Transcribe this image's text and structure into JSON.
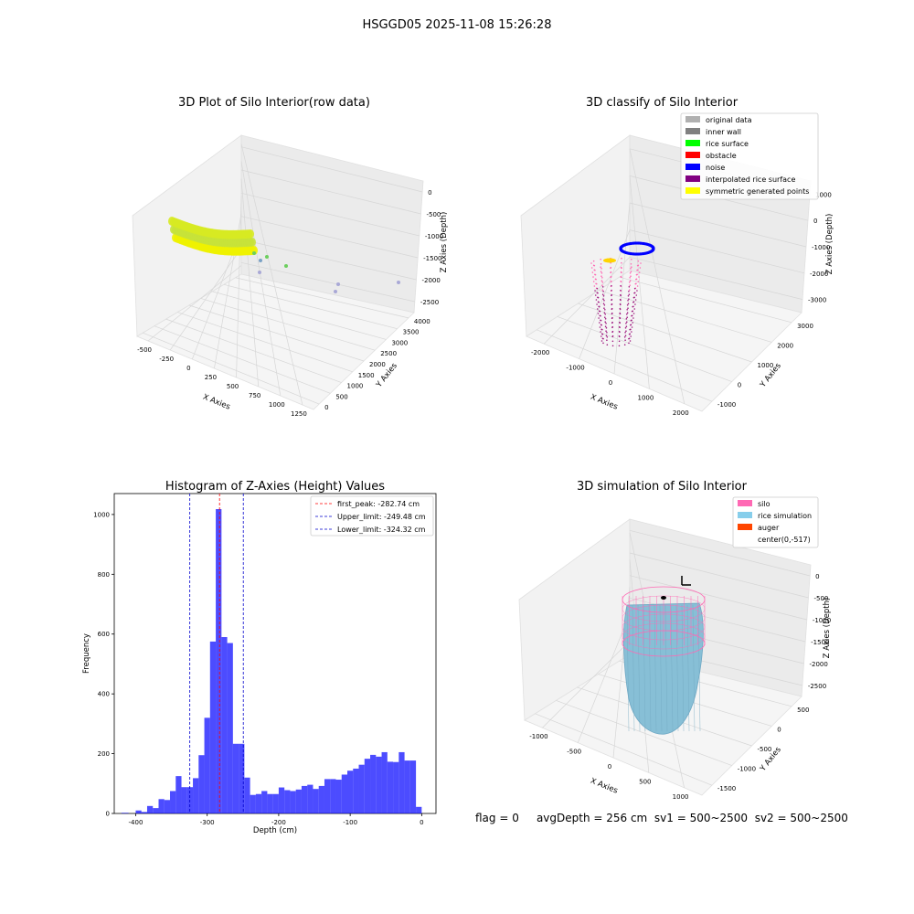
{
  "figure": {
    "suptitle": "HSGGD05 2025-11-08 15:26:28",
    "status_parts": [
      "flag = 0",
      "avgDepth = 256 cm",
      "sv1 = 500~2500",
      "sv2 = 500~2500"
    ]
  },
  "panels": {
    "raw": {
      "title": "3D Plot of Silo Interior(row data)",
      "xlabel": "X Axies",
      "ylabel": "Y Axies",
      "zlabel": "Z Axies (Depth)",
      "xticks": [
        "-500",
        "-250",
        "0",
        "250",
        "500",
        "750",
        "1000",
        "1250"
      ],
      "yticks": [
        "0",
        "500",
        "1000",
        "1500",
        "2000",
        "2500",
        "3000",
        "3500",
        "4000"
      ],
      "zticks": [
        "0",
        "-500",
        "-1000",
        "-1500",
        "-2000",
        "-2500"
      ]
    },
    "classify": {
      "title": "3D classify of Silo Interior",
      "xlabel": "X Axies",
      "ylabel": "Y Axies",
      "zlabel": "Z Axies (Depth)",
      "xticks": [
        "-2000",
        "-1000",
        "0",
        "1000",
        "2000"
      ],
      "yticks": [
        "-1000",
        "0",
        "1000",
        "2000",
        "3000"
      ],
      "zticks": [
        "1000",
        "0",
        "-1000",
        "-2000",
        "-3000"
      ],
      "legend": [
        {
          "label": "original data",
          "color": "#b0b0b0"
        },
        {
          "label": "inner wall",
          "color": "#808080"
        },
        {
          "label": "rice surface",
          "color": "#00ff00"
        },
        {
          "label": "obstacle",
          "color": "#ff0000"
        },
        {
          "label": "noise",
          "color": "#0000ff"
        },
        {
          "label": "interpolated rice surface",
          "color": "#800080"
        },
        {
          "label": "symmetric generated points",
          "color": "#ffff00"
        }
      ]
    },
    "simulation": {
      "title": "3D simulation of Silo Interior",
      "xlabel": "X Axies",
      "ylabel": "Y Axies",
      "zlabel": "Z Axies (Depth)",
      "xticks": [
        "-1000",
        "-500",
        "0",
        "500",
        "1000"
      ],
      "yticks": [
        "-1500",
        "-1000",
        "-500",
        "0",
        "500"
      ],
      "zticks": [
        "0",
        "-500",
        "-1000",
        "-1500",
        "-2000",
        "-2500"
      ],
      "legend": [
        {
          "label": "silo",
          "color": "#ff69b4"
        },
        {
          "label": "rice simulation",
          "color": "#87ceeb"
        },
        {
          "label": "auger",
          "color": "#ff4500"
        },
        {
          "label": "center(0,-517)",
          "color": "none"
        }
      ]
    }
  },
  "chart_data": {
    "type": "bar",
    "title": "Histogram of Z-Axies (Height) Values",
    "xlabel": "Depth (cm)",
    "ylabel": "Frequency",
    "xlim": [
      -430,
      20
    ],
    "ylim": [
      0,
      1070
    ],
    "xticks": [
      -400,
      -300,
      -200,
      -100,
      0
    ],
    "yticks": [
      0,
      200,
      400,
      600,
      800,
      1000
    ],
    "bar_color": "#0000ff",
    "bins": [
      {
        "x0": -420,
        "x1": -410,
        "value": 2
      },
      {
        "x0": -410,
        "x1": -400,
        "value": 0
      },
      {
        "x0": -400,
        "x1": -392,
        "value": 10
      },
      {
        "x0": -392,
        "x1": -384,
        "value": 5
      },
      {
        "x0": -384,
        "x1": -376,
        "value": 25
      },
      {
        "x0": -376,
        "x1": -368,
        "value": 18
      },
      {
        "x0": -368,
        "x1": -360,
        "value": 48
      },
      {
        "x0": -360,
        "x1": -352,
        "value": 45
      },
      {
        "x0": -352,
        "x1": -344,
        "value": 75
      },
      {
        "x0": -344,
        "x1": -336,
        "value": 125
      },
      {
        "x0": -336,
        "x1": -328,
        "value": 88
      },
      {
        "x0": -328,
        "x1": -320,
        "value": 88
      },
      {
        "x0": -320,
        "x1": -312,
        "value": 118
      },
      {
        "x0": -312,
        "x1": -304,
        "value": 195
      },
      {
        "x0": -304,
        "x1": -296,
        "value": 320
      },
      {
        "x0": -296,
        "x1": -288,
        "value": 575
      },
      {
        "x0": -288,
        "x1": -280,
        "value": 1018
      },
      {
        "x0": -280,
        "x1": -272,
        "value": 590
      },
      {
        "x0": -272,
        "x1": -264,
        "value": 570
      },
      {
        "x0": -264,
        "x1": -256,
        "value": 233
      },
      {
        "x0": -256,
        "x1": -248,
        "value": 233
      },
      {
        "x0": -248,
        "x1": -240,
        "value": 120
      },
      {
        "x0": -240,
        "x1": -232,
        "value": 62
      },
      {
        "x0": -232,
        "x1": -224,
        "value": 65
      },
      {
        "x0": -224,
        "x1": -216,
        "value": 75
      },
      {
        "x0": -216,
        "x1": -208,
        "value": 65
      },
      {
        "x0": -208,
        "x1": -200,
        "value": 65
      },
      {
        "x0": -200,
        "x1": -192,
        "value": 87
      },
      {
        "x0": -192,
        "x1": -184,
        "value": 78
      },
      {
        "x0": -184,
        "x1": -176,
        "value": 75
      },
      {
        "x0": -176,
        "x1": -168,
        "value": 80
      },
      {
        "x0": -168,
        "x1": -160,
        "value": 92
      },
      {
        "x0": -160,
        "x1": -152,
        "value": 96
      },
      {
        "x0": -152,
        "x1": -144,
        "value": 82
      },
      {
        "x0": -144,
        "x1": -136,
        "value": 92
      },
      {
        "x0": -136,
        "x1": -128,
        "value": 115
      },
      {
        "x0": -128,
        "x1": -120,
        "value": 115
      },
      {
        "x0": -120,
        "x1": -112,
        "value": 113
      },
      {
        "x0": -112,
        "x1": -104,
        "value": 130
      },
      {
        "x0": -104,
        "x1": -96,
        "value": 143
      },
      {
        "x0": -96,
        "x1": -88,
        "value": 150
      },
      {
        "x0": -88,
        "x1": -80,
        "value": 163
      },
      {
        "x0": -80,
        "x1": -72,
        "value": 183
      },
      {
        "x0": -72,
        "x1": -64,
        "value": 196
      },
      {
        "x0": -64,
        "x1": -56,
        "value": 190
      },
      {
        "x0": -56,
        "x1": -48,
        "value": 205
      },
      {
        "x0": -48,
        "x1": -40,
        "value": 173
      },
      {
        "x0": -40,
        "x1": -32,
        "value": 172
      },
      {
        "x0": -32,
        "x1": -24,
        "value": 205
      },
      {
        "x0": -24,
        "x1": -16,
        "value": 177
      },
      {
        "x0": -16,
        "x1": -8,
        "value": 177
      },
      {
        "x0": -8,
        "x1": 0,
        "value": 22
      }
    ],
    "vlines": [
      {
        "name": "first_peak: -282.74 cm",
        "x": -282.74,
        "color": "#ff0000"
      },
      {
        "name": "Upper_limit: -249.48 cm",
        "x": -249.48,
        "color": "#0000cc"
      },
      {
        "name": "Lower_limit: -324.32 cm",
        "x": -324.32,
        "color": "#0000cc"
      }
    ],
    "legend_position": "upper right"
  }
}
